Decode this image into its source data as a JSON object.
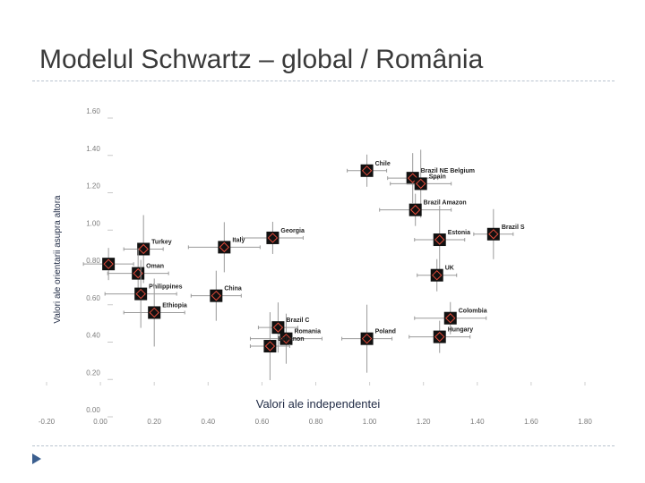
{
  "slide": {
    "title": "Modelul Schwartz – global / România"
  },
  "chart_data": {
    "type": "scatter",
    "title": "",
    "xlabel": "Valori ale independentei",
    "ylabel": "Valori ale orientarii asupra altora",
    "xlim": [
      -0.2,
      1.8
    ],
    "ylim": [
      0.0,
      1.6
    ],
    "x_ticks": [
      "-0.20",
      "0.00",
      "0.20",
      "0.40",
      "0.60",
      "0.80",
      "1.00",
      "1.20",
      "1.40",
      "1.60",
      "1.80"
    ],
    "y_ticks": [
      "0.00",
      "0.20",
      "0.40",
      "0.60",
      "0.80",
      "1.00",
      "1.20",
      "1.40",
      "1.60"
    ],
    "points": [
      {
        "label": "Chile",
        "x": 0.99,
        "y": 1.28
      },
      {
        "label": "Brazil NE Belgium",
        "x": 1.16,
        "y": 1.24
      },
      {
        "label": "Spain",
        "x": 1.19,
        "y": 1.21
      },
      {
        "label": "Brazil Amazon",
        "x": 1.17,
        "y": 1.07
      },
      {
        "label": "Brazil S",
        "x": 1.46,
        "y": 0.94
      },
      {
        "label": "Estonia",
        "x": 1.26,
        "y": 0.91
      },
      {
        "label": "Georgia",
        "x": 0.64,
        "y": 0.92
      },
      {
        "label": "Italy",
        "x": 0.46,
        "y": 0.87
      },
      {
        "label": "Turkey",
        "x": 0.16,
        "y": 0.86
      },
      {
        "label": "",
        "x": 0.03,
        "y": 0.78
      },
      {
        "label": "Oman",
        "x": 0.14,
        "y": 0.73
      },
      {
        "label": "Philippines",
        "x": 0.15,
        "y": 0.62
      },
      {
        "label": "UK",
        "x": 1.25,
        "y": 0.72
      },
      {
        "label": "China",
        "x": 0.43,
        "y": 0.61
      },
      {
        "label": "Ethiopia",
        "x": 0.2,
        "y": 0.52
      },
      {
        "label": "Colombia",
        "x": 1.3,
        "y": 0.49
      },
      {
        "label": "Brazil C",
        "x": 0.66,
        "y": 0.44
      },
      {
        "label": "Poland",
        "x": 0.99,
        "y": 0.38
      },
      {
        "label": "Hungary",
        "x": 1.26,
        "y": 0.39
      },
      {
        "label": "Romania",
        "x": 0.69,
        "y": 0.38
      },
      {
        "label": "Lebanon",
        "x": 0.63,
        "y": 0.34
      }
    ],
    "grid": false,
    "legend": "none"
  }
}
